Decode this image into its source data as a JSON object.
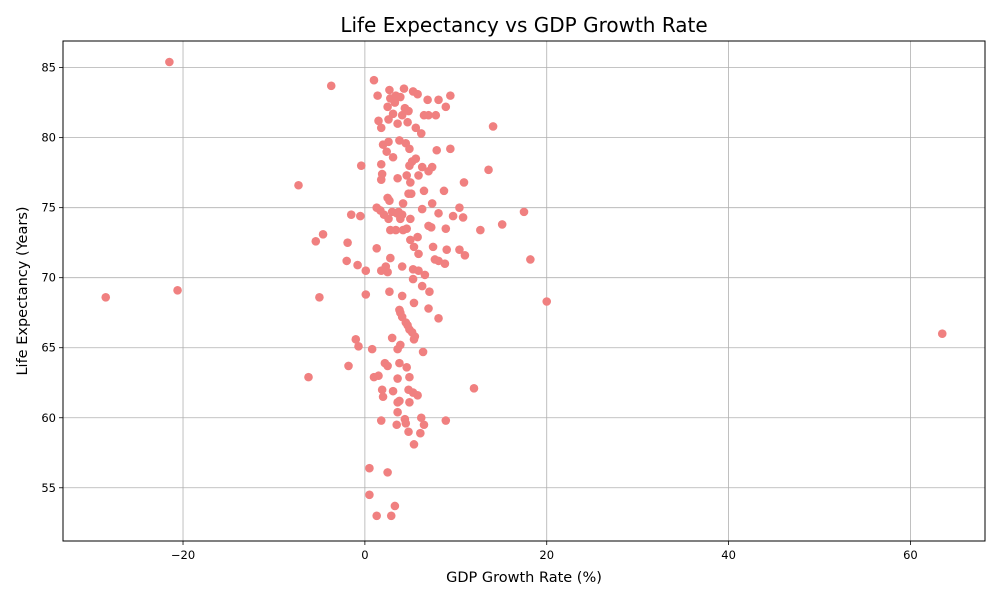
{
  "chart_data": {
    "type": "scatter",
    "title": "Life Expectancy vs GDP Growth Rate",
    "xlabel": "GDP Growth Rate (%)",
    "ylabel": "Life Expectancy (Years)",
    "xlim": [
      -33.2,
      68.2
    ],
    "ylim": [
      51.2,
      86.9
    ],
    "xticks": [
      -20,
      0,
      20,
      40,
      60
    ],
    "yticks": [
      55,
      60,
      65,
      70,
      75,
      80,
      85
    ],
    "xtick_labels": [
      "−20",
      "0",
      "20",
      "40",
      "60"
    ],
    "ytick_labels": [
      "55",
      "60",
      "65",
      "70",
      "75",
      "80",
      "85"
    ],
    "grid": true,
    "legend": "none",
    "point_color": "#f08080",
    "points": [
      [
        -21.5,
        85.4
      ],
      [
        -3.7,
        83.7
      ],
      [
        1.0,
        84.1
      ],
      [
        1.4,
        83.0
      ],
      [
        2.7,
        83.4
      ],
      [
        3.4,
        83.0
      ],
      [
        4.3,
        83.5
      ],
      [
        5.3,
        83.3
      ],
      [
        5.8,
        83.1
      ],
      [
        6.9,
        82.7
      ],
      [
        8.1,
        82.7
      ],
      [
        9.4,
        83.0
      ],
      [
        2.8,
        82.8
      ],
      [
        3.3,
        82.5
      ],
      [
        3.9,
        82.9
      ],
      [
        4.4,
        82.1
      ],
      [
        2.5,
        82.2
      ],
      [
        4.8,
        81.9
      ],
      [
        8.9,
        82.2
      ],
      [
        3.1,
        81.7
      ],
      [
        4.1,
        81.6
      ],
      [
        6.5,
        81.6
      ],
      [
        7.0,
        81.6
      ],
      [
        7.8,
        81.6
      ],
      [
        1.5,
        81.2
      ],
      [
        2.6,
        81.3
      ],
      [
        3.6,
        81.0
      ],
      [
        4.7,
        81.1
      ],
      [
        1.8,
        80.7
      ],
      [
        5.6,
        80.7
      ],
      [
        6.2,
        80.3
      ],
      [
        14.1,
        80.8
      ],
      [
        2.0,
        79.5
      ],
      [
        2.6,
        79.7
      ],
      [
        3.8,
        79.8
      ],
      [
        4.5,
        79.6
      ],
      [
        4.9,
        79.2
      ],
      [
        7.9,
        79.1
      ],
      [
        9.4,
        79.2
      ],
      [
        2.4,
        79.0
      ],
      [
        3.1,
        78.6
      ],
      [
        5.2,
        78.3
      ],
      [
        5.6,
        78.5
      ],
      [
        1.8,
        78.1
      ],
      [
        -0.4,
        78.0
      ],
      [
        4.9,
        78.0
      ],
      [
        6.3,
        77.9
      ],
      [
        7.4,
        77.9
      ],
      [
        13.6,
        77.7
      ],
      [
        1.9,
        77.4
      ],
      [
        4.6,
        77.3
      ],
      [
        5.9,
        77.3
      ],
      [
        7.0,
        77.6
      ],
      [
        1.8,
        77.0
      ],
      [
        3.6,
        77.1
      ],
      [
        5.0,
        76.8
      ],
      [
        10.9,
        76.8
      ],
      [
        -7.3,
        76.6
      ],
      [
        4.8,
        76.0
      ],
      [
        5.1,
        76.0
      ],
      [
        6.5,
        76.2
      ],
      [
        8.7,
        76.2
      ],
      [
        2.5,
        75.7
      ],
      [
        2.7,
        75.5
      ],
      [
        4.2,
        75.3
      ],
      [
        7.4,
        75.3
      ],
      [
        1.3,
        75.0
      ],
      [
        1.7,
        74.8
      ],
      [
        3.0,
        74.7
      ],
      [
        3.5,
        74.6
      ],
      [
        4.1,
        74.5
      ],
      [
        6.3,
        74.9
      ],
      [
        8.1,
        74.6
      ],
      [
        9.7,
        74.4
      ],
      [
        10.4,
        75.0
      ],
      [
        17.5,
        74.7
      ],
      [
        -1.5,
        74.5
      ],
      [
        -0.5,
        74.4
      ],
      [
        2.1,
        74.5
      ],
      [
        2.6,
        74.2
      ],
      [
        3.7,
        74.7
      ],
      [
        3.9,
        74.2
      ],
      [
        5.0,
        74.2
      ],
      [
        10.8,
        74.3
      ],
      [
        15.1,
        73.8
      ],
      [
        2.8,
        73.4
      ],
      [
        3.4,
        73.4
      ],
      [
        4.2,
        73.4
      ],
      [
        4.6,
        73.5
      ],
      [
        7.0,
        73.7
      ],
      [
        7.3,
        73.6
      ],
      [
        8.9,
        73.5
      ],
      [
        12.7,
        73.4
      ],
      [
        -4.6,
        73.1
      ],
      [
        -5.4,
        72.6
      ],
      [
        -1.9,
        72.5
      ],
      [
        1.3,
        72.1
      ],
      [
        5.0,
        72.7
      ],
      [
        5.4,
        72.2
      ],
      [
        5.8,
        72.9
      ],
      [
        7.5,
        72.2
      ],
      [
        9.0,
        72.0
      ],
      [
        10.4,
        72.0
      ],
      [
        5.9,
        71.7
      ],
      [
        2.8,
        71.4
      ],
      [
        7.7,
        71.3
      ],
      [
        8.1,
        71.2
      ],
      [
        8.8,
        71.0
      ],
      [
        11.0,
        71.6
      ],
      [
        18.2,
        71.3
      ],
      [
        -2.0,
        71.2
      ],
      [
        -0.8,
        70.9
      ],
      [
        0.1,
        70.5
      ],
      [
        1.8,
        70.5
      ],
      [
        2.3,
        70.8
      ],
      [
        2.5,
        70.4
      ],
      [
        4.1,
        70.8
      ],
      [
        5.3,
        70.6
      ],
      [
        5.9,
        70.5
      ],
      [
        6.6,
        70.2
      ],
      [
        5.3,
        69.9
      ],
      [
        6.3,
        69.4
      ],
      [
        -28.5,
        68.6
      ],
      [
        -20.6,
        69.1
      ],
      [
        -5.0,
        68.6
      ],
      [
        0.1,
        68.8
      ],
      [
        2.7,
        69.0
      ],
      [
        4.1,
        68.7
      ],
      [
        5.4,
        68.2
      ],
      [
        7.1,
        69.0
      ],
      [
        20.0,
        68.3
      ],
      [
        3.8,
        67.7
      ],
      [
        3.9,
        67.5
      ],
      [
        4.1,
        67.2
      ],
      [
        7.0,
        67.8
      ],
      [
        8.1,
        67.1
      ],
      [
        4.5,
        66.8
      ],
      [
        4.7,
        66.6
      ],
      [
        4.9,
        66.3
      ],
      [
        5.2,
        66.1
      ],
      [
        5.5,
        65.8
      ],
      [
        5.4,
        65.6
      ],
      [
        63.5,
        66.0
      ],
      [
        -1.0,
        65.6
      ],
      [
        -0.7,
        65.1
      ],
      [
        0.8,
        64.9
      ],
      [
        3.0,
        65.7
      ],
      [
        3.6,
        64.9
      ],
      [
        3.9,
        65.2
      ],
      [
        6.4,
        64.7
      ],
      [
        -1.8,
        63.7
      ],
      [
        2.2,
        63.9
      ],
      [
        2.5,
        63.7
      ],
      [
        3.8,
        63.9
      ],
      [
        4.6,
        63.6
      ],
      [
        -6.2,
        62.9
      ],
      [
        1.0,
        62.9
      ],
      [
        1.5,
        63.0
      ],
      [
        3.6,
        62.8
      ],
      [
        4.9,
        62.9
      ],
      [
        12.0,
        62.1
      ],
      [
        1.9,
        62.0
      ],
      [
        2.0,
        61.5
      ],
      [
        3.1,
        61.9
      ],
      [
        3.8,
        61.2
      ],
      [
        3.6,
        61.1
      ],
      [
        4.8,
        62.0
      ],
      [
        4.9,
        61.1
      ],
      [
        5.3,
        61.8
      ],
      [
        5.8,
        61.6
      ],
      [
        3.6,
        60.4
      ],
      [
        1.8,
        59.8
      ],
      [
        3.5,
        59.5
      ],
      [
        4.4,
        59.9
      ],
      [
        4.5,
        59.6
      ],
      [
        4.8,
        59.0
      ],
      [
        6.2,
        60.0
      ],
      [
        6.5,
        59.5
      ],
      [
        8.9,
        59.8
      ],
      [
        6.1,
        58.9
      ],
      [
        5.4,
        58.1
      ],
      [
        0.5,
        56.4
      ],
      [
        2.5,
        56.1
      ],
      [
        0.5,
        54.5
      ],
      [
        3.3,
        53.7
      ],
      [
        1.3,
        53.0
      ],
      [
        2.9,
        53.0
      ]
    ]
  }
}
